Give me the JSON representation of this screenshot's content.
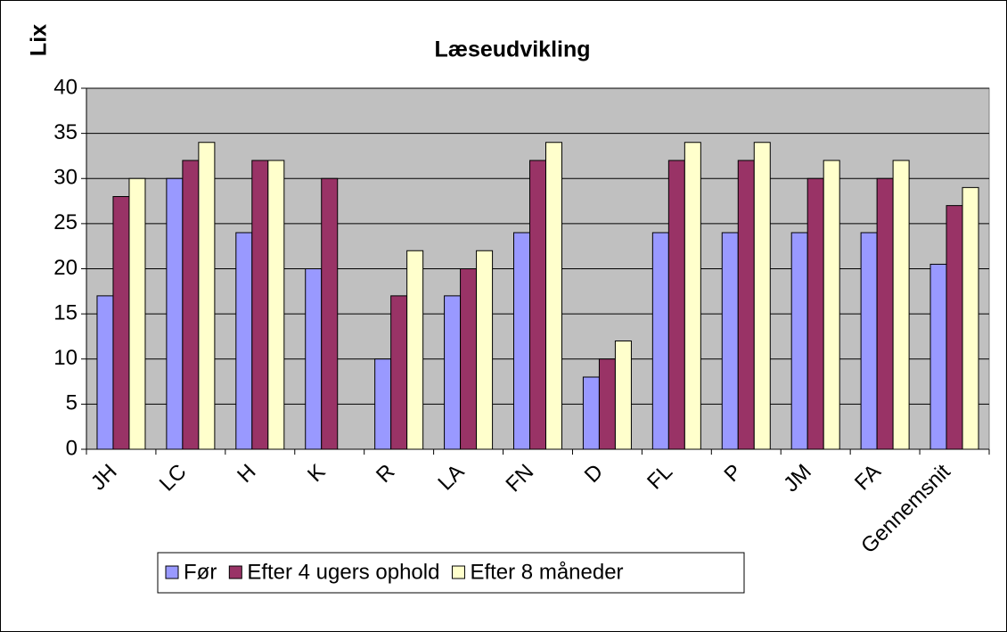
{
  "chart_data": {
    "type": "bar",
    "title": "Læseudvikling",
    "y_label": "Lix",
    "categories": [
      "JH",
      "LC",
      "H",
      "K",
      "R",
      "LA",
      "FN",
      "D",
      "FL",
      "P",
      "JM",
      "FA",
      "Gennemsnit"
    ],
    "series": [
      {
        "name": "Før",
        "color": "#9999ff",
        "values": [
          17,
          30,
          24,
          20,
          10,
          17,
          24,
          8,
          24,
          24,
          24,
          24,
          20.5
        ]
      },
      {
        "name": "Efter 4 ugers ophold",
        "color": "#993366",
        "values": [
          28,
          32,
          32,
          30,
          17,
          20,
          32,
          10,
          32,
          32,
          30,
          30,
          27
        ]
      },
      {
        "name": "Efter 8 måneder",
        "color": "#ffffcc",
        "values": [
          30,
          34,
          32,
          null,
          22,
          22,
          34,
          12,
          34,
          34,
          32,
          32,
          29
        ]
      }
    ],
    "ylim": [
      0,
      40
    ],
    "yticks": [
      0,
      5,
      10,
      15,
      20,
      25,
      30,
      35,
      40
    ],
    "grid": true,
    "legend": "bottom"
  }
}
